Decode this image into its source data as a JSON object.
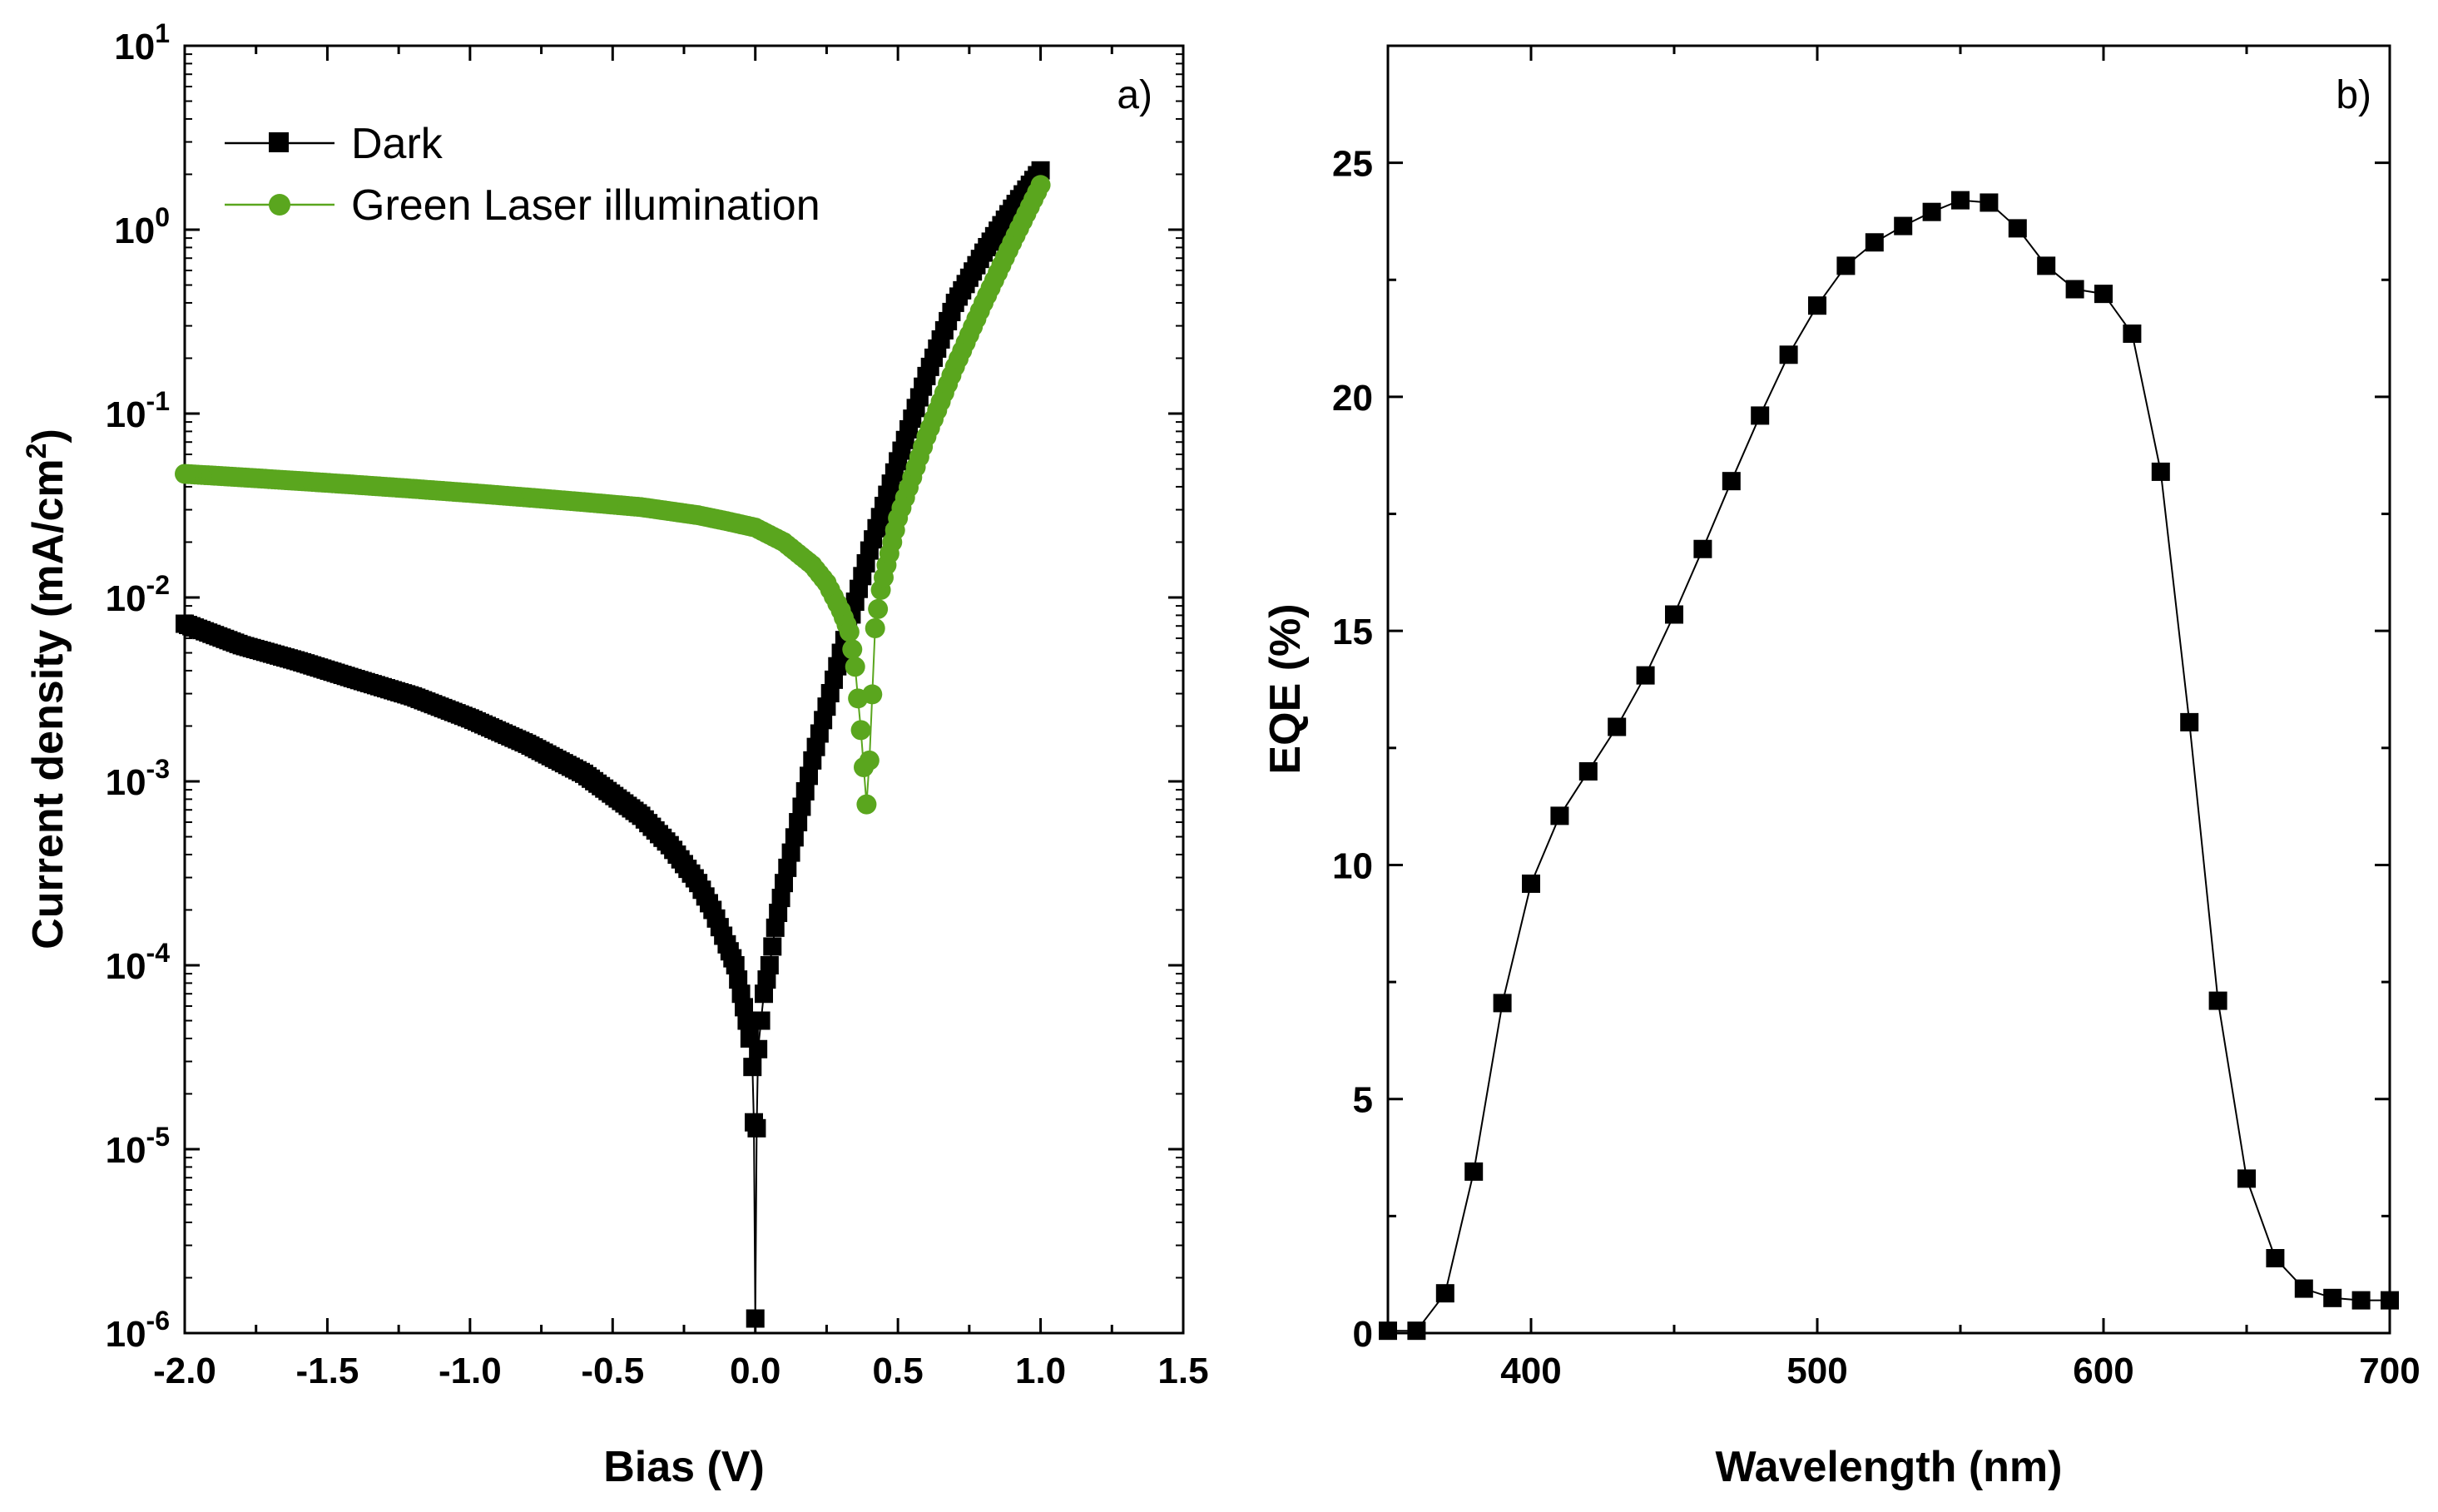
{
  "chart_data": [
    {
      "panel_label": "a)",
      "type": "line",
      "xlabel": "Bias (V)",
      "ylabel_main": "Current density (mA/cm",
      "ylabel_sup": "2",
      "ylabel_close": ")",
      "yscale": "log",
      "xlim": [
        -2.0,
        1.5
      ],
      "ylim": [
        1e-06,
        10
      ],
      "xticks": [
        "-2.0",
        "-1.5",
        "-1.0",
        "-0.5",
        "0.0",
        "0.5",
        "1.0",
        "1.5"
      ],
      "yticks": [
        {
          "base": "10",
          "exp": "1"
        },
        {
          "base": "10",
          "exp": "0"
        },
        {
          "base": "10",
          "exp": "-1"
        },
        {
          "base": "10",
          "exp": "-2"
        },
        {
          "base": "10",
          "exp": "-3"
        },
        {
          "base": "10",
          "exp": "-4"
        },
        {
          "base": "10",
          "exp": "-5"
        },
        {
          "base": "10",
          "exp": "-6"
        }
      ],
      "legend_position": "top-left",
      "series": [
        {
          "name": "Dark",
          "color": "#000000",
          "marker": "square",
          "x": [
            -2.0,
            -1.8,
            -1.6,
            -1.4,
            -1.2,
            -1.0,
            -0.8,
            -0.6,
            -0.4,
            -0.3,
            -0.2,
            -0.15,
            -0.1,
            -0.07,
            -0.05,
            -0.03,
            -0.02,
            -0.01,
            -0.005,
            0.0,
            0.005,
            0.01,
            0.02,
            0.03,
            0.05,
            0.07,
            0.1,
            0.15,
            0.2,
            0.3,
            0.4,
            0.5,
            0.6,
            0.7,
            0.8,
            0.9,
            1.0
          ],
          "y": [
            0.0072,
            0.0055,
            0.0045,
            0.0036,
            0.0029,
            0.0022,
            0.0016,
            0.0011,
            0.00065,
            0.00045,
            0.00028,
            0.0002,
            0.00013,
            0.0001,
            7e-05,
            5e-05,
            4e-05,
            2.8e-05,
            1.4e-05,
            1.2e-06,
            1.3e-05,
            3.5e-05,
            5e-05,
            7e-05,
            0.0001,
            0.00016,
            0.00028,
            0.0006,
            0.0013,
            0.005,
            0.018,
            0.055,
            0.16,
            0.4,
            0.75,
            1.3,
            2.1
          ]
        },
        {
          "name": "Green Laser illumination",
          "color": "#5aa61e",
          "marker": "circle",
          "x": [
            -2.0,
            -1.8,
            -1.6,
            -1.4,
            -1.2,
            -1.0,
            -0.8,
            -0.6,
            -0.4,
            -0.2,
            -0.1,
            0.0,
            0.1,
            0.2,
            0.25,
            0.3,
            0.33,
            0.35,
            0.37,
            0.39,
            0.4,
            0.42,
            0.44,
            0.46,
            0.48,
            0.5,
            0.55,
            0.6,
            0.7,
            0.8,
            0.9,
            1.0
          ],
          "y": [
            0.047,
            0.045,
            0.043,
            0.041,
            0.039,
            0.037,
            0.035,
            0.033,
            0.031,
            0.028,
            0.026,
            0.024,
            0.02,
            0.015,
            0.012,
            0.0085,
            0.0065,
            0.0042,
            0.0019,
            0.00075,
            0.0013,
            0.0068,
            0.011,
            0.015,
            0.02,
            0.027,
            0.045,
            0.075,
            0.18,
            0.4,
            0.85,
            1.75
          ]
        }
      ]
    },
    {
      "panel_label": "b)",
      "type": "line",
      "xlabel": "Wavelength (nm)",
      "ylabel": "EQE  (%)",
      "xlim": [
        350,
        700
      ],
      "ylim": [
        0,
        27.5
      ],
      "xticks": [
        "400",
        "500",
        "600",
        "700"
      ],
      "yticks": [
        "0",
        "5",
        "10",
        "15",
        "20",
        "25"
      ],
      "series": [
        {
          "name": "EQE",
          "color": "#000000",
          "marker": "square",
          "x": [
            350,
            360,
            370,
            380,
            390,
            400,
            410,
            420,
            430,
            440,
            450,
            460,
            470,
            480,
            490,
            500,
            510,
            520,
            530,
            540,
            550,
            560,
            570,
            580,
            590,
            600,
            610,
            620,
            630,
            640,
            650,
            660,
            670,
            680,
            690,
            700
          ],
          "y": [
            0.05,
            0.05,
            0.85,
            3.45,
            7.05,
            9.6,
            11.05,
            12.0,
            12.95,
            14.05,
            15.35,
            16.75,
            18.2,
            19.6,
            20.9,
            21.95,
            22.8,
            23.3,
            23.65,
            23.95,
            24.2,
            24.15,
            23.6,
            22.8,
            22.3,
            22.2,
            21.35,
            18.4,
            13.05,
            7.1,
            3.3,
            1.6,
            0.95,
            0.75,
            0.7,
            0.7
          ]
        }
      ]
    }
  ]
}
